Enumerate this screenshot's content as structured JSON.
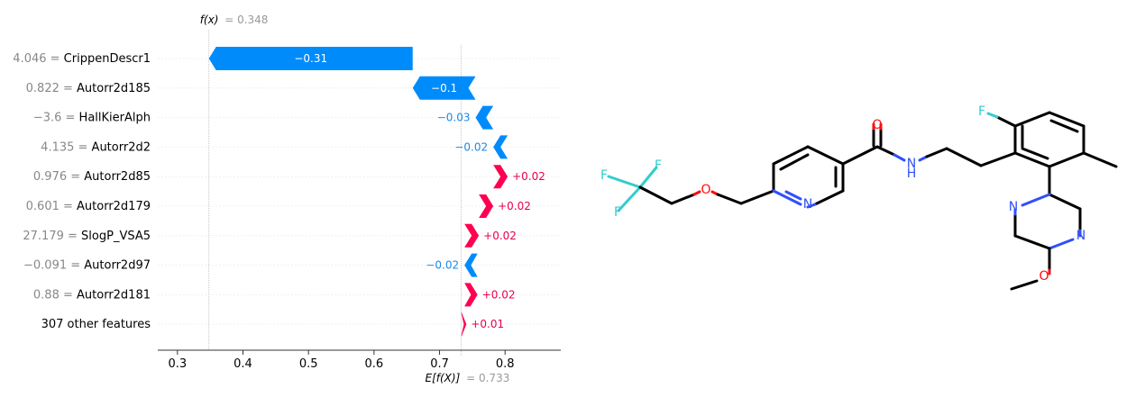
{
  "chart_data": {
    "type": "waterfall",
    "fx_label": "f(x)",
    "fx_value": "= 0.348",
    "fx": 0.348,
    "base_label": "E[f(X)]",
    "base_value": "= 0.733",
    "base": 0.733,
    "xlim": [
      0.27,
      0.885
    ],
    "x_ticks": [
      0.3,
      0.4,
      0.5,
      0.6,
      0.7,
      0.8
    ],
    "x_tick_labels": [
      "0.3",
      "0.4",
      "0.5",
      "0.6",
      "0.7",
      "0.8"
    ],
    "colors": {
      "negative": "#008bfb",
      "positive": "#ff0051",
      "text_negative": "#1e88e5",
      "text_positive": "#e8004d"
    },
    "features": [
      {
        "value_text": "4.046 =",
        "name": "CrippenDescr1",
        "shap": -0.31,
        "label": "−0.31",
        "start": 0.659,
        "end": 0.348
      },
      {
        "value_text": "0.822 =",
        "name": "Autorr2d185",
        "shap": -0.1,
        "label": "−0.1",
        "start": 0.755,
        "end": 0.659
      },
      {
        "value_text": "−3.6 =",
        "name": "HallKierAlph",
        "shap": -0.03,
        "label": "−0.03",
        "start": 0.782,
        "end": 0.755
      },
      {
        "value_text": "4.135 =",
        "name": "Autorr2d2",
        "shap": -0.02,
        "label": "−0.02",
        "start": 0.804,
        "end": 0.782
      },
      {
        "value_text": "0.976 =",
        "name": "Autorr2d85",
        "shap": 0.02,
        "label": "+0.02",
        "start": 0.782,
        "end": 0.804
      },
      {
        "value_text": "0.601 =",
        "name": "Autorr2d179",
        "shap": 0.02,
        "label": "+0.02",
        "start": 0.76,
        "end": 0.782
      },
      {
        "value_text": "27.179 =",
        "name": "SlogP_VSA5",
        "shap": 0.02,
        "label": "+0.02",
        "start": 0.738,
        "end": 0.76
      },
      {
        "value_text": "−0.091 =",
        "name": "Autorr2d97",
        "shap": -0.02,
        "label": "−0.02",
        "start": 0.758,
        "end": 0.738
      },
      {
        "value_text": "0.88 =",
        "name": "Autorr2d181",
        "shap": 0.02,
        "label": "+0.02",
        "start": 0.738,
        "end": 0.758
      },
      {
        "value_text": "",
        "name": "307 other features",
        "shap": 0.01,
        "label": "+0.01",
        "start": 0.733,
        "end": 0.741
      }
    ]
  },
  "molecule": {
    "atom_labels": {
      "f1": "F",
      "f2": "F",
      "f3": "F",
      "f4": "F",
      "o_ether": "O",
      "o_carbonyl": "O",
      "o_methoxy": "O",
      "n_pyridine": "N",
      "n_amide": "N",
      "h_amide": "H",
      "n_pyrazine1": "N",
      "n_pyrazine2": "N"
    },
    "colors": {
      "bond": "#000000",
      "F": "#33cccc",
      "O": "#ff0d0d",
      "N": "#3050f8"
    }
  }
}
